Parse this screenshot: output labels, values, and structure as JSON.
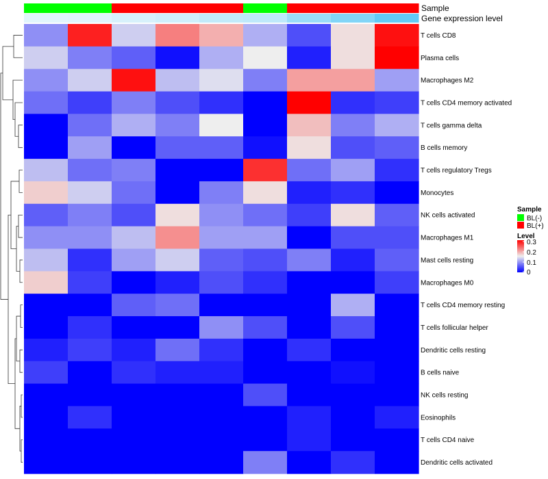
{
  "chart_data": {
    "type": "heatmap",
    "annotation_titles": [
      "Sample",
      "Gene expression level"
    ],
    "sample_annotation": [
      "BL(-)",
      "BL(-)",
      "BL(+)",
      "BL(+)",
      "BL(+)",
      "BL(-)",
      "BL(+)",
      "BL(+)",
      "BL(+)"
    ],
    "expression_annotation": [
      0.05,
      0.06,
      0.12,
      0.18,
      0.28,
      0.3,
      0.55,
      0.72,
      0.95
    ],
    "rows": [
      "T cells CD8",
      "Plasma cells",
      "Macrophages M2",
      "T cells CD4 memory activated",
      "T cells gamma delta",
      "B cells memory",
      "T cells regulatory  Tregs",
      "Monocytes",
      "NK cells activated",
      "Macrophages M1",
      "Mast cells resting",
      "Macrophages M0",
      "T cells CD4 memory resting",
      "T cells follicular helper",
      "Dendritic cells resting",
      "B cells naive",
      "NK cells resting",
      "Eosinophils",
      "T cells CD4 naive",
      "Dendritic cells activated"
    ],
    "values": [
      [
        0.09,
        0.28,
        0.13,
        0.22,
        0.19,
        0.11,
        0.05,
        0.16,
        0.29
      ],
      [
        0.13,
        0.08,
        0.06,
        0.01,
        0.11,
        0.15,
        0.02,
        0.16,
        0.31
      ],
      [
        0.09,
        0.13,
        0.29,
        0.12,
        0.14,
        0.08,
        0.2,
        0.2,
        0.1
      ],
      [
        0.07,
        0.04,
        0.08,
        0.05,
        0.03,
        0.0,
        0.31,
        0.03,
        0.04
      ],
      [
        0.0,
        0.07,
        0.11,
        0.08,
        0.15,
        0.0,
        0.18,
        0.08,
        0.11
      ],
      [
        0.0,
        0.1,
        0.0,
        0.06,
        0.06,
        0.01,
        0.16,
        0.05,
        0.06
      ],
      [
        0.12,
        0.07,
        0.08,
        0.0,
        0.0,
        0.27,
        0.07,
        0.1,
        0.03
      ],
      [
        0.17,
        0.13,
        0.07,
        0.0,
        0.08,
        0.16,
        0.02,
        0.03,
        0.0
      ],
      [
        0.06,
        0.08,
        0.05,
        0.16,
        0.09,
        0.07,
        0.04,
        0.16,
        0.06
      ],
      [
        0.09,
        0.09,
        0.12,
        0.21,
        0.1,
        0.1,
        0.0,
        0.05,
        0.05
      ],
      [
        0.12,
        0.03,
        0.1,
        0.13,
        0.06,
        0.05,
        0.08,
        0.02,
        0.06
      ],
      [
        0.17,
        0.04,
        0.0,
        0.02,
        0.05,
        0.03,
        0.0,
        0.0,
        0.04
      ],
      [
        0.0,
        0.0,
        0.06,
        0.07,
        0.0,
        0.0,
        0.0,
        0.11,
        0.0
      ],
      [
        0.0,
        0.03,
        0.0,
        0.0,
        0.09,
        0.05,
        0.0,
        0.05,
        0.0
      ],
      [
        0.02,
        0.04,
        0.02,
        0.07,
        0.03,
        0.0,
        0.03,
        0.0,
        0.0
      ],
      [
        0.04,
        0.0,
        0.03,
        0.02,
        0.02,
        0.0,
        0.0,
        0.01,
        0.0
      ],
      [
        0.0,
        0.0,
        0.0,
        0.0,
        0.0,
        0.05,
        0.0,
        0.0,
        0.0
      ],
      [
        0.0,
        0.03,
        0.0,
        0.0,
        0.0,
        0.0,
        0.02,
        0.0,
        0.02
      ],
      [
        0.0,
        0.0,
        0.0,
        0.0,
        0.0,
        0.0,
        0.02,
        0.0,
        0.0
      ],
      [
        0.0,
        0.0,
        0.0,
        0.0,
        0.0,
        0.08,
        0.0,
        0.03,
        0.0
      ]
    ],
    "color_scale": {
      "low": "#0000ff",
      "mid": "#eeeeee",
      "high": "#ff0000",
      "min": 0,
      "mid_value": 0.15,
      "max": 0.3
    },
    "legend": {
      "sample_title": "Sample",
      "sample_entries": [
        {
          "label": "BL(-)",
          "color": "#00ff00"
        },
        {
          "label": "BL(+)",
          "color": "#ff0000"
        }
      ],
      "level_title": "Level",
      "level_ticks": [
        "0.3",
        "0.2",
        "0.1",
        "0"
      ],
      "placement": "right"
    },
    "expression_colors": {
      "low": "#e8f7fc",
      "high": "#5bc8f5"
    },
    "grid": false
  }
}
